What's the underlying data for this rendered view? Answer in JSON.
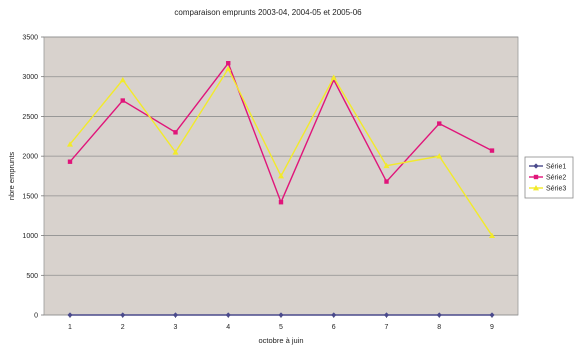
{
  "chart_data": {
    "type": "line",
    "title": "comparaison emprunts 2003-04, 2004-05 et 2005-06",
    "xlabel": "octobre à juin",
    "ylabel": "nbre emprunts",
    "categories": [
      "1",
      "2",
      "3",
      "4",
      "5",
      "6",
      "7",
      "8",
      "9"
    ],
    "ylim": [
      0,
      3500
    ],
    "yticks": [
      0,
      500,
      1000,
      1500,
      2000,
      2500,
      3000,
      3500
    ],
    "grid": true,
    "legend_position": "right",
    "plot_background": "#d8d2cd",
    "series": [
      {
        "name": "Série1",
        "color": "#4a4a8c",
        "marker": "diamond",
        "values": [
          0,
          0,
          0,
          0,
          0,
          0,
          0,
          0,
          0
        ]
      },
      {
        "name": "Série2",
        "color": "#e0157a",
        "marker": "square",
        "values": [
          1930,
          2700,
          2300,
          3170,
          1420,
          2960,
          1680,
          2410,
          2070
        ]
      },
      {
        "name": "Série3",
        "color": "#f2ea2a",
        "marker": "triangle",
        "values": [
          2150,
          2960,
          2050,
          3100,
          1750,
          2990,
          1880,
          2000,
          1000
        ]
      }
    ]
  }
}
